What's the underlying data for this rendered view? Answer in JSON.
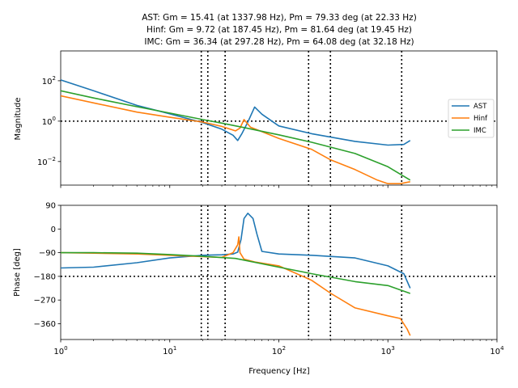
{
  "chart_data": {
    "type": "line",
    "title_lines": [
      "AST: Gm = 15.41 (at 1337.98 Hz), Pm = 79.33 deg (at 22.33 Hz)",
      "Hinf: Gm = 9.72 (at 187.45 Hz), Pm = 81.64 deg (at 19.45 Hz)",
      "IMC: Gm = 36.34 (at 297.28 Hz), Pm = 64.08 deg (at 32.18 Hz)"
    ],
    "xlabel": "Frequency [Hz]",
    "xscale": "log",
    "xlim": [
      1,
      10000
    ],
    "x_ticks": [
      "10^0",
      "10^1",
      "10^2",
      "10^3",
      "10^4"
    ],
    "legend_position": "right",
    "crossover_frequencies_hz": [
      19.45,
      22.33,
      32.18,
      187.45,
      297.28,
      1337.98
    ],
    "series_colors": {
      "AST": "#1f77b4",
      "Hinf": "#ff7f0e",
      "IMC": "#2ca02c"
    },
    "magnitude": {
      "ylabel": "Magnitude",
      "yscale": "log",
      "ylim": [
        0.00068,
        3000
      ],
      "y_ticks": [
        "10^2",
        "10^0",
        "10^-2"
      ],
      "reference_line": 1.0,
      "series": [
        {
          "name": "AST",
          "x": [
            1,
            2,
            5,
            10,
            20,
            30,
            38,
            42,
            46,
            52,
            60,
            70,
            100,
            200,
            500,
            1000,
            1400,
            1600
          ],
          "y": [
            110,
            32,
            6,
            2.3,
            0.85,
            0.4,
            0.2,
            0.11,
            0.25,
            0.9,
            5,
            2.2,
            0.58,
            0.24,
            0.1,
            0.065,
            0.07,
            0.11
          ]
        },
        {
          "name": "Hinf",
          "x": [
            1,
            2,
            5,
            10,
            20,
            30,
            40,
            44,
            48,
            55,
            70,
            100,
            200,
            300,
            500,
            800,
            1000,
            1300,
            1600
          ],
          "y": [
            18,
            8,
            2.8,
            1.55,
            0.9,
            0.55,
            0.33,
            0.45,
            1.2,
            0.5,
            0.3,
            0.14,
            0.04,
            0.012,
            0.004,
            0.0012,
            0.0008,
            0.0008,
            0.001
          ]
        },
        {
          "name": "IMC",
          "x": [
            1,
            2,
            5,
            10,
            20,
            30,
            50,
            100,
            200,
            500,
            1000,
            1600
          ],
          "y": [
            32,
            14,
            5.2,
            2.5,
            1.2,
            0.8,
            0.46,
            0.21,
            0.09,
            0.025,
            0.0055,
            0.0012
          ]
        }
      ]
    },
    "phase": {
      "ylabel": "Phase [deg]",
      "ylim": [
        -420,
        90
      ],
      "y_ticks": [
        90,
        0,
        -90,
        -180,
        -270,
        -360
      ],
      "reference_line": -180,
      "series": [
        {
          "name": "AST",
          "x": [
            1,
            2,
            5,
            10,
            20,
            30,
            38,
            42,
            45,
            48,
            52,
            58,
            63,
            70,
            100,
            200,
            500,
            1000,
            1400,
            1600
          ],
          "y": [
            -148,
            -145,
            -128,
            -110,
            -100,
            -98,
            -95,
            -88,
            -40,
            40,
            60,
            40,
            -20,
            -85,
            -95,
            -100,
            -110,
            -140,
            -170,
            -225
          ]
        },
        {
          "name": "Hinf",
          "x": [
            1,
            2,
            5,
            10,
            20,
            30,
            38,
            42,
            43,
            44,
            48,
            60,
            100,
            200,
            300,
            500,
            1000,
            1300,
            1500,
            1600
          ],
          "y": [
            -90,
            -92,
            -95,
            -100,
            -105,
            -108,
            -90,
            -60,
            -30,
            -90,
            -115,
            -125,
            -140,
            -195,
            -245,
            -300,
            -330,
            -340,
            -380,
            -405
          ]
        },
        {
          "name": "IMC",
          "x": [
            1,
            2,
            5,
            10,
            20,
            40,
            100,
            200,
            500,
            1000,
            1600
          ],
          "y": [
            -90,
            -90,
            -92,
            -97,
            -104,
            -112,
            -145,
            -170,
            -200,
            -215,
            -245
          ]
        }
      ]
    }
  }
}
